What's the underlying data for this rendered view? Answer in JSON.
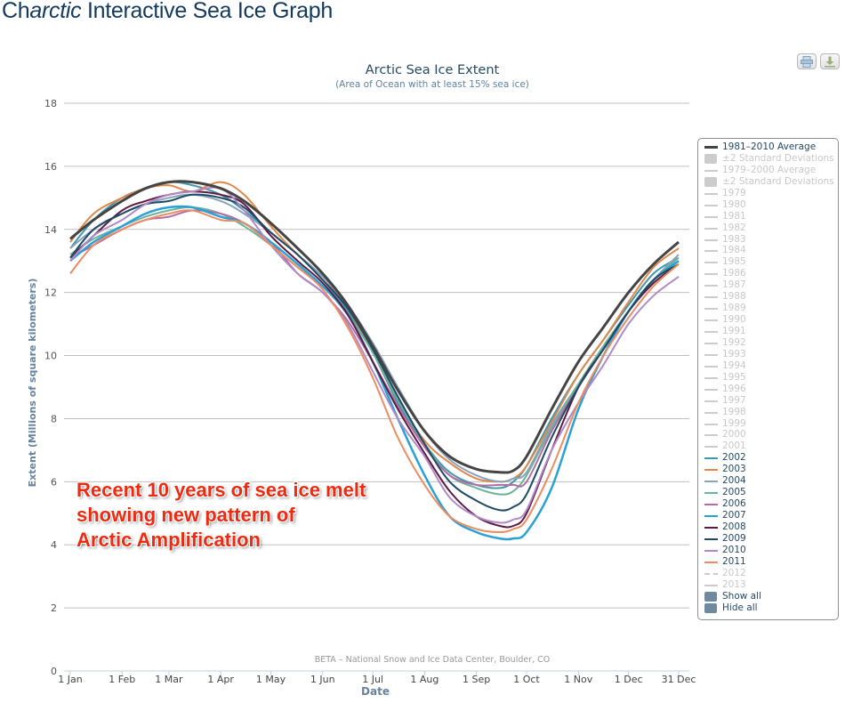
{
  "page": {
    "title_prefix": "Ch",
    "title_italic": "arctic",
    "title_rest": " Interactive Sea Ice Graph"
  },
  "toolbar": {
    "print_icon": "printer-icon",
    "download_icon": "download-icon"
  },
  "annotation": {
    "lines": [
      "Recent 10 years of sea ice melt",
      "showing new pattern of",
      "Arctic Amplification"
    ],
    "color": "#ee2a10"
  },
  "chart_data": {
    "type": "line",
    "title": "Arctic Sea Ice Extent",
    "subtitle": "(Area of Ocean with at least 15% sea ice)",
    "xlabel": "Date",
    "ylabel": "Extent (Millions of square kilometers)",
    "credit": "BETA – National Snow and Ice Data Center, Boulder, CO",
    "ylim": [
      0,
      18
    ],
    "yticks": [
      0,
      2,
      4,
      6,
      8,
      10,
      12,
      14,
      16,
      18
    ],
    "xlim_day": [
      1,
      365
    ],
    "xticks": [
      {
        "day": 1,
        "label": "1 Jan"
      },
      {
        "day": 32,
        "label": "1 Feb"
      },
      {
        "day": 60,
        "label": "1 Mar"
      },
      {
        "day": 91,
        "label": "1 Apr"
      },
      {
        "day": 121,
        "label": "1 May"
      },
      {
        "day": 152,
        "label": "1 Jun"
      },
      {
        "day": 182,
        "label": "1 Jul"
      },
      {
        "day": 213,
        "label": "1 Aug"
      },
      {
        "day": 244,
        "label": "1 Sep"
      },
      {
        "day": 274,
        "label": "1 Oct"
      },
      {
        "day": 305,
        "label": "1 Nov"
      },
      {
        "day": 335,
        "label": "1 Dec"
      },
      {
        "day": 365,
        "label": "31 Dec"
      }
    ],
    "grid": true,
    "legend_position": "right",
    "x_days": [
      1,
      15,
      32,
      46,
      60,
      74,
      91,
      105,
      121,
      137,
      152,
      167,
      182,
      197,
      213,
      228,
      244,
      258,
      266,
      274,
      289,
      305,
      320,
      335,
      350,
      365
    ],
    "series": [
      {
        "name": "1981–2010 Average",
        "color": "#444444",
        "width": 3,
        "values": [
          13.7,
          14.3,
          14.9,
          15.3,
          15.5,
          15.5,
          15.3,
          14.9,
          14.2,
          13.4,
          12.6,
          11.6,
          10.3,
          8.9,
          7.6,
          6.8,
          6.4,
          6.3,
          6.35,
          6.8,
          8.3,
          9.8,
          10.9,
          12.0,
          12.9,
          13.6
        ]
      },
      {
        "name": "2002",
        "color": "#3f97b0",
        "width": 2,
        "values": [
          13.4,
          14.3,
          15.0,
          15.3,
          15.5,
          15.4,
          15.1,
          14.6,
          13.9,
          13.2,
          12.4,
          11.4,
          10.1,
          8.5,
          7.2,
          6.3,
          5.9,
          5.8,
          6.0,
          6.5,
          8.0,
          9.4,
          10.5,
          11.6,
          12.6,
          13.1
        ]
      },
      {
        "name": "2003",
        "color": "#e0874a",
        "width": 2,
        "values": [
          13.6,
          14.5,
          15.0,
          15.3,
          15.4,
          15.2,
          15.5,
          15.1,
          14.1,
          13.2,
          12.5,
          11.5,
          10.1,
          8.6,
          7.3,
          6.6,
          6.1,
          6.0,
          6.1,
          6.5,
          7.9,
          9.4,
          10.5,
          11.7,
          12.8,
          13.4
        ]
      },
      {
        "name": "2004",
        "color": "#8aa3bd",
        "width": 2,
        "values": [
          13.4,
          14.0,
          14.5,
          14.8,
          15.0,
          15.1,
          14.9,
          14.5,
          13.9,
          13.2,
          12.5,
          11.6,
          10.4,
          9.0,
          7.6,
          6.7,
          6.2,
          6.0,
          6.1,
          6.3,
          7.8,
          9.1,
          10.3,
          11.4,
          12.4,
          13.2
        ]
      },
      {
        "name": "2005",
        "color": "#6db29c",
        "width": 2,
        "values": [
          13.2,
          13.7,
          14.1,
          14.4,
          14.6,
          14.7,
          14.5,
          14.1,
          13.5,
          12.8,
          12.2,
          11.3,
          10.1,
          8.6,
          7.2,
          6.2,
          5.8,
          5.6,
          5.7,
          6.2,
          7.7,
          9.1,
          10.3,
          11.4,
          12.4,
          13.1
        ]
      },
      {
        "name": "2006",
        "color": "#b46da2",
        "width": 2,
        "values": [
          13.1,
          13.5,
          14.0,
          14.3,
          14.4,
          14.6,
          14.5,
          14.2,
          13.6,
          12.6,
          12.0,
          11.1,
          9.8,
          8.4,
          7.1,
          6.2,
          5.9,
          5.9,
          5.9,
          6.0,
          7.6,
          9.0,
          10.2,
          11.4,
          12.4,
          13.0
        ]
      },
      {
        "name": "2007",
        "color": "#2aa1d6",
        "width": 2.5,
        "values": [
          13.0,
          13.6,
          14.1,
          14.5,
          14.7,
          14.7,
          14.4,
          14.2,
          13.6,
          12.9,
          12.2,
          11.3,
          9.8,
          8.0,
          6.2,
          4.9,
          4.4,
          4.2,
          4.2,
          4.4,
          5.8,
          8.3,
          10.0,
          11.4,
          12.4,
          13.0
        ]
      },
      {
        "name": "2008",
        "color": "#5e1a42",
        "width": 2,
        "values": [
          13.1,
          13.8,
          14.6,
          14.9,
          15.1,
          15.2,
          15.1,
          14.8,
          13.8,
          13.0,
          12.3,
          11.3,
          9.8,
          8.3,
          6.9,
          5.7,
          4.9,
          4.6,
          4.6,
          5.0,
          7.0,
          9.0,
          10.2,
          11.4,
          12.3,
          12.9
        ]
      },
      {
        "name": "2009",
        "color": "#1f4a65",
        "width": 2,
        "values": [
          13.1,
          14.0,
          14.5,
          14.8,
          14.9,
          15.1,
          15.0,
          14.7,
          13.9,
          13.2,
          12.4,
          11.5,
          10.2,
          8.7,
          7.2,
          6.0,
          5.4,
          5.1,
          5.2,
          5.6,
          7.4,
          9.0,
          10.2,
          11.4,
          12.4,
          12.9
        ]
      },
      {
        "name": "2010",
        "color": "#b08ac6",
        "width": 2,
        "values": [
          13.0,
          13.8,
          14.3,
          14.8,
          15.1,
          15.2,
          15.3,
          14.6,
          13.5,
          12.6,
          12.0,
          11.0,
          9.5,
          8.0,
          6.8,
          5.5,
          4.9,
          4.7,
          4.8,
          5.1,
          7.0,
          8.5,
          9.7,
          11.0,
          11.9,
          12.5
        ]
      },
      {
        "name": "2011",
        "color": "#ec8c63",
        "width": 2,
        "values": [
          12.6,
          13.5,
          14.0,
          14.3,
          14.5,
          14.6,
          14.3,
          14.2,
          13.5,
          12.8,
          12.1,
          10.9,
          9.3,
          7.4,
          5.9,
          4.9,
          4.5,
          4.4,
          4.5,
          4.8,
          6.4,
          8.5,
          10.0,
          11.2,
          12.2,
          12.9
        ]
      }
    ],
    "legend": [
      {
        "label": "1981–2010 Average",
        "kind": "line",
        "color": "#444444",
        "active": true
      },
      {
        "label": "±2 Standard Deviations",
        "kind": "box",
        "color": "#cccccc",
        "active": false
      },
      {
        "label": "1979–2000 Average",
        "kind": "line",
        "color": "#cccccc",
        "active": false
      },
      {
        "label": "±2 Standard Deviations",
        "kind": "box",
        "color": "#cccccc",
        "active": false
      },
      {
        "label": "1979",
        "kind": "line",
        "color": "#cccccc",
        "active": false
      },
      {
        "label": "1980",
        "kind": "line",
        "color": "#cccccc",
        "active": false
      },
      {
        "label": "1981",
        "kind": "line",
        "color": "#cccccc",
        "active": false
      },
      {
        "label": "1982",
        "kind": "line",
        "color": "#cccccc",
        "active": false
      },
      {
        "label": "1983",
        "kind": "line",
        "color": "#cccccc",
        "active": false
      },
      {
        "label": "1984",
        "kind": "line",
        "color": "#cccccc",
        "active": false
      },
      {
        "label": "1985",
        "kind": "line",
        "color": "#cccccc",
        "active": false
      },
      {
        "label": "1986",
        "kind": "line",
        "color": "#cccccc",
        "active": false
      },
      {
        "label": "1987",
        "kind": "line",
        "color": "#cccccc",
        "active": false
      },
      {
        "label": "1988",
        "kind": "line",
        "color": "#cccccc",
        "active": false
      },
      {
        "label": "1989",
        "kind": "line",
        "color": "#cccccc",
        "active": false
      },
      {
        "label": "1990",
        "kind": "line",
        "color": "#cccccc",
        "active": false
      },
      {
        "label": "1991",
        "kind": "line",
        "color": "#cccccc",
        "active": false
      },
      {
        "label": "1992",
        "kind": "line",
        "color": "#cccccc",
        "active": false
      },
      {
        "label": "1993",
        "kind": "line",
        "color": "#cccccc",
        "active": false
      },
      {
        "label": "1994",
        "kind": "line",
        "color": "#cccccc",
        "active": false
      },
      {
        "label": "1995",
        "kind": "line",
        "color": "#cccccc",
        "active": false
      },
      {
        "label": "1996",
        "kind": "line",
        "color": "#cccccc",
        "active": false
      },
      {
        "label": "1997",
        "kind": "line",
        "color": "#cccccc",
        "active": false
      },
      {
        "label": "1998",
        "kind": "line",
        "color": "#cccccc",
        "active": false
      },
      {
        "label": "1999",
        "kind": "line",
        "color": "#cccccc",
        "active": false
      },
      {
        "label": "2000",
        "kind": "line",
        "color": "#cccccc",
        "active": false
      },
      {
        "label": "2001",
        "kind": "line",
        "color": "#cccccc",
        "active": false
      },
      {
        "label": "2002",
        "kind": "line",
        "color": "#3f97b0",
        "active": true
      },
      {
        "label": "2003",
        "kind": "line",
        "color": "#e0874a",
        "active": true
      },
      {
        "label": "2004",
        "kind": "line",
        "color": "#8aa3bd",
        "active": true
      },
      {
        "label": "2005",
        "kind": "line",
        "color": "#6db29c",
        "active": true
      },
      {
        "label": "2006",
        "kind": "line",
        "color": "#b46da2",
        "active": true
      },
      {
        "label": "2007",
        "kind": "line",
        "color": "#2aa1d6",
        "active": true
      },
      {
        "label": "2008",
        "kind": "line",
        "color": "#5e1a42",
        "active": true
      },
      {
        "label": "2009",
        "kind": "line",
        "color": "#1f4a65",
        "active": true
      },
      {
        "label": "2010",
        "kind": "line",
        "color": "#b08ac6",
        "active": true
      },
      {
        "label": "2011",
        "kind": "line",
        "color": "#ec8c63",
        "active": true
      },
      {
        "label": "2012",
        "kind": "dash",
        "color": "#cccccc",
        "active": false
      },
      {
        "label": "2013",
        "kind": "line",
        "color": "#cccccc",
        "active": false
      },
      {
        "label": "Show all",
        "kind": "button",
        "color": "#6f8aa0",
        "active": true
      },
      {
        "label": "Hide all",
        "kind": "button",
        "color": "#6f8aa0",
        "active": true
      }
    ]
  }
}
